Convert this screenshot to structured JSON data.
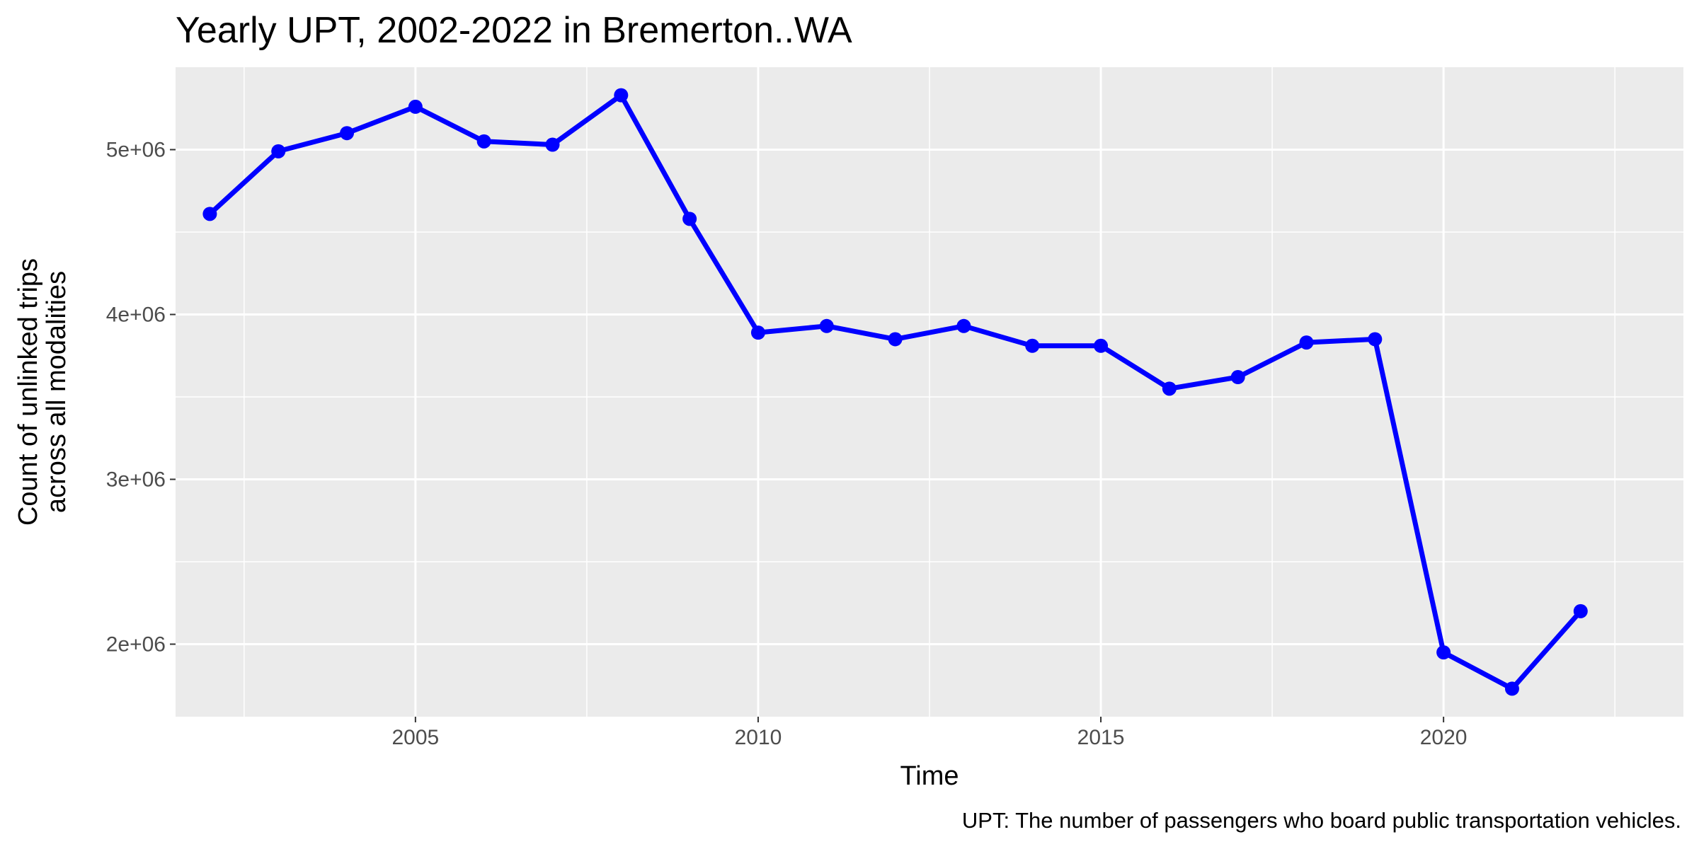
{
  "chart_data": {
    "type": "line",
    "title": "Yearly UPT, 2002-2022 in Bremerton..WA",
    "xlabel": "Time",
    "ylabel_lines": [
      "Count of unlinked trips",
      "across all modalities"
    ],
    "caption": "UPT: The number of passengers who board public transportation vehicles.",
    "x": [
      2002,
      2003,
      2004,
      2005,
      2006,
      2007,
      2008,
      2009,
      2010,
      2011,
      2012,
      2013,
      2014,
      2015,
      2016,
      2017,
      2018,
      2019,
      2020,
      2021,
      2022
    ],
    "series": [
      {
        "color": "#0000ff",
        "values": [
          4610000,
          4990000,
          5100000,
          5260000,
          5050000,
          5030000,
          5330000,
          4580000,
          3890000,
          3930000,
          3850000,
          3930000,
          3810000,
          3810000,
          3550000,
          3620000,
          3830000,
          3850000,
          1950000,
          1730000,
          2200000
        ]
      }
    ],
    "xlim": [
      2001.5,
      2023.5
    ],
    "ylim": [
      1560000,
      5500000
    ],
    "x_ticks": [
      2005,
      2010,
      2015,
      2020
    ],
    "x_tick_labels": [
      "2005",
      "2010",
      "2015",
      "2020"
    ],
    "x_minor_ticks": [
      2002.5,
      2007.5,
      2012.5,
      2017.5,
      2022.5
    ],
    "y_ticks": [
      2000000,
      3000000,
      4000000,
      5000000
    ],
    "y_tick_labels": [
      "2e+06",
      "3e+06",
      "4e+06",
      "5e+06"
    ],
    "y_minor_ticks": [
      2500000,
      3500000,
      4500000
    ],
    "grid": true,
    "legend": "none",
    "panel_color": "#ebebeb",
    "grid_color": "#ffffff"
  }
}
